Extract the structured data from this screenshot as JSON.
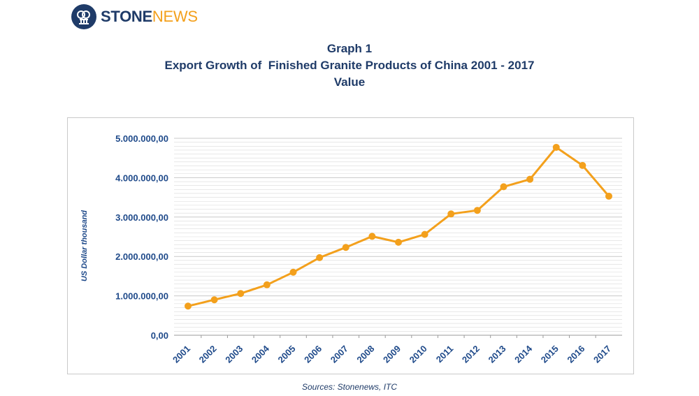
{
  "brand": {
    "name_bold": "STONE",
    "name_light": "NEWS",
    "colors": {
      "primary": "#1f3b68",
      "accent": "#f3a01c"
    },
    "icon": "stonenews-logo-icon"
  },
  "header": {
    "line1": "Graph 1",
    "line2": "Export Growth of  Finished Granite Products of China 2001 - 2017",
    "line3": "Value"
  },
  "source": "Sources: Stonenews, ITC",
  "chart_data": {
    "type": "line",
    "title": "Export Growth of  Finished Granite Products of China 2001 - 2017",
    "xlabel": "",
    "ylabel": "US Dollar thousand",
    "categories": [
      "2001",
      "2002",
      "2003",
      "2004",
      "2005",
      "2006",
      "2007",
      "2008",
      "2009",
      "2010",
      "2011",
      "2012",
      "2013",
      "2014",
      "2015",
      "2016",
      "2017"
    ],
    "values": [
      740000,
      900000,
      1060000,
      1280000,
      1600000,
      1970000,
      2230000,
      2510000,
      2360000,
      2560000,
      3080000,
      3170000,
      3770000,
      3960000,
      4770000,
      4310000,
      3530000
    ],
    "ylim": [
      0,
      5000000
    ],
    "yticks": [
      0,
      1000000,
      2000000,
      3000000,
      4000000,
      5000000
    ],
    "ytick_labels": [
      "0,00",
      "1.000.000,00",
      "2.000.000,00",
      "3.000.000,00",
      "4.000.000,00",
      "5.000.000,00"
    ],
    "grid": true,
    "colors": {
      "line": "#f3a01c",
      "axis_text": "#1f4a8a",
      "grid": "#d9d9d9"
    }
  }
}
